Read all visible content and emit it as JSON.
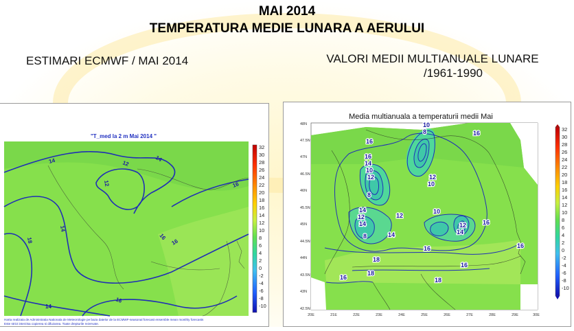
{
  "header": {
    "title_line1": "MAI 2014",
    "title_line2": "TEMPERATURA MEDIE LUNARA A AERULUI"
  },
  "left_panel": {
    "heading": "ESTIMARI ECMWF / MAI 2014",
    "map_title": "\"T_med la 2 m Mai 2014 \"",
    "contour_labels": [
      "14",
      "12",
      "14",
      "12",
      "16",
      "14",
      "16",
      "16",
      "18",
      "16",
      "14"
    ],
    "legend_ticks": [
      "32",
      "30",
      "28",
      "26",
      "24",
      "22",
      "20",
      "18",
      "16",
      "14",
      "12",
      "10",
      "8",
      "6",
      "4",
      "2",
      "0",
      "-2",
      "-4",
      "-6",
      "-8",
      "-10"
    ],
    "footnote_line1": "Harta realizata de Administratia Nationala de Meteorologie pe baza datelor de la ECMWF-seasonal forecast ensemble mean monthly forecasts",
    "footnote_line2": "Este strict interzisa copierea si difuzarea. Toate drepturile rezervate."
  },
  "right_panel": {
    "heading_line1": "VALORI MEDII MULTIANUALE LUNARE",
    "heading_line2": "/1961-1990",
    "map_title": "Media multianuala a temperaturii medii Mai",
    "lat_labels": [
      "48N",
      "47.5N",
      "47N",
      "46.5N",
      "46N",
      "45.5N",
      "45N",
      "44.5N",
      "44N",
      "43.5N",
      "43N",
      "42.5N"
    ],
    "lon_labels": [
      "20E",
      "21E",
      "22E",
      "23E",
      "24E",
      "25E",
      "26E",
      "27E",
      "28E",
      "29E",
      "30E"
    ],
    "contour_labels": [
      "10",
      "8",
      "16",
      "16",
      "14",
      "16",
      "10",
      "12",
      "12",
      "10",
      "8",
      "14",
      "12",
      "12",
      "10",
      "14",
      "12",
      "14",
      "8",
      "14",
      "16",
      "16",
      "18",
      "18",
      "16",
      "18",
      "16",
      "16"
    ],
    "legend_ticks": [
      "32",
      "30",
      "28",
      "26",
      "24",
      "22",
      "20",
      "18",
      "16",
      "14",
      "12",
      "10",
      "8",
      "6",
      "4",
      "2",
      "0",
      "-2",
      "-4",
      "-6",
      "-8",
      "-10"
    ]
  },
  "colors": {
    "map_green": "#7fe04a",
    "map_green_light": "#a6e85a",
    "map_teal": "#4fd89a",
    "contour_blue": "#1f2fb5"
  }
}
